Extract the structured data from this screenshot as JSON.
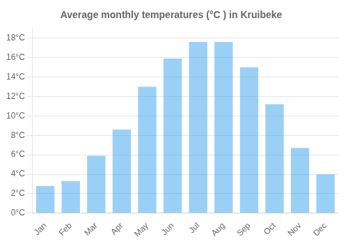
{
  "chart_data": {
    "type": "bar",
    "title": "Average monthly temperatures (°C ) in Kruibeke",
    "categories": [
      "Jan",
      "Feb",
      "Mar",
      "Apr",
      "May",
      "Jun",
      "Jul",
      "Aug",
      "Sep",
      "Oct",
      "Nov",
      "Dec"
    ],
    "values": [
      2.8,
      3.3,
      5.9,
      8.6,
      13.0,
      15.9,
      17.6,
      17.6,
      15.0,
      11.2,
      6.7,
      4.0
    ],
    "ylim": [
      0,
      19
    ],
    "yticks": [
      {
        "value": 0,
        "label": "0°C"
      },
      {
        "value": 2,
        "label": "2°C"
      },
      {
        "value": 4,
        "label": "4°C"
      },
      {
        "value": 6,
        "label": "6°C"
      },
      {
        "value": 8,
        "label": "8°C"
      },
      {
        "value": 10,
        "label": "10°C"
      },
      {
        "value": 12,
        "label": "12°C"
      },
      {
        "value": 14,
        "label": "14°C"
      },
      {
        "value": 16,
        "label": "16°C"
      },
      {
        "value": 18,
        "label": "18°C"
      }
    ],
    "grid": true
  }
}
